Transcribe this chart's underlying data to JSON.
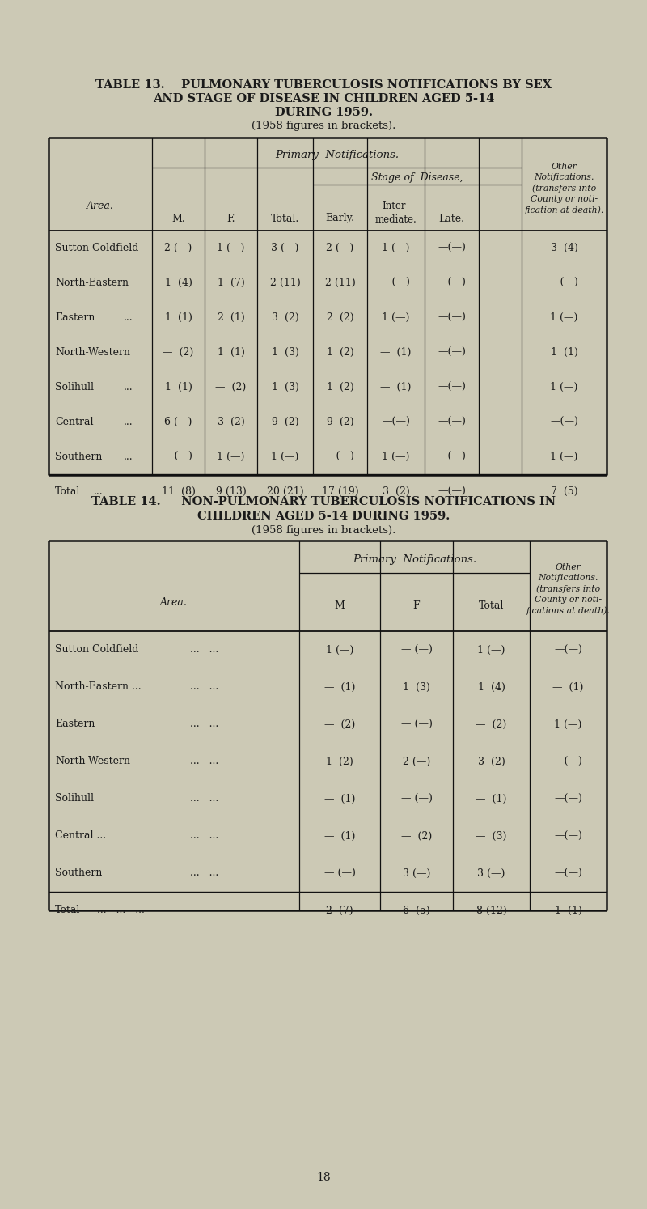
{
  "bg_color": "#ccc9b5",
  "text_color": "#1a1a1a",
  "table13_title_line1": "TABLE 13.    PULMONARY TUBERCULOSIS NOTIFICATIONS BY SEX",
  "table13_title_line2": "AND STAGE OF DISEASE IN CHILDREN AGED 5-14",
  "table13_title_line3": "DURING 1959.",
  "table13_subtitle": "(1958 figures in brackets).",
  "table14_title_line1": "TABLE 14.     NON-PULMONARY TUBERCULOSIS NOTIFICATIONS IN",
  "table14_title_line2": "CHILDREN AGED 5-14 DURING 1959.",
  "table14_subtitle": "(1958 figures in brackets).",
  "table13_rows": [
    [
      "Sutton Coldfield",
      "",
      "2 (—)",
      "1 (—)",
      "3 (—)",
      "2 (—)",
      "1 (—)",
      "—(—)",
      "3  (4)"
    ],
    [
      "North-Eastern",
      "",
      "1  (4)",
      "1  (7)",
      "2 (11)",
      "2 (11)",
      "—(—)",
      "—(—)",
      "—(—)"
    ],
    [
      "Eastern",
      "...",
      "1  (1)",
      "2  (1)",
      "3  (2)",
      "2  (2)",
      "1 (—)",
      "—(—)",
      "1 (—)"
    ],
    [
      "North-Western",
      "",
      "—  (2)",
      "1  (1)",
      "1  (3)",
      "1  (2)",
      "—  (1)",
      "—(—)",
      "1  (1)"
    ],
    [
      "Solihull",
      "...",
      "1  (1)",
      "—  (2)",
      "1  (3)",
      "1  (2)",
      "—  (1)",
      "—(—)",
      "1 (—)"
    ],
    [
      "Central",
      "...",
      "6 (—)",
      "3  (2)",
      "9  (2)",
      "9  (2)",
      "—(—)",
      "—(—)",
      "—(—)"
    ],
    [
      "Southern",
      "...",
      "—(—)",
      "1 (—)",
      "1 (—)",
      "—(—)",
      "1 (—)",
      "—(—)",
      "1 (—)"
    ],
    [
      "Total",
      "...",
      "11  (8)",
      "9 (13)",
      "20 (21)",
      "17 (19)",
      "3  (2)",
      "—(—)",
      "7  (5)"
    ]
  ],
  "table14_rows": [
    [
      "Sutton Coldfield",
      "1 (—)",
      "— (—)",
      "1 (—)",
      "—(—)"
    ],
    [
      "North-Eastern ...",
      "—  (1)",
      "1  (3)",
      "1  (4)",
      "—  (1)"
    ],
    [
      "Eastern",
      "—  (2)",
      "— (—)",
      "—  (2)",
      "1 (—)"
    ],
    [
      "North-Western",
      "1  (2)",
      "2 (—)",
      "3  (2)",
      "—(—)"
    ],
    [
      "Solihull",
      "—  (1)",
      "— (—)",
      "—  (1)",
      "—(—)"
    ],
    [
      "Central ...",
      "—  (1)",
      "—  (2)",
      "—  (3)",
      "—(—)"
    ],
    [
      "Southern",
      "— (—)",
      "3 (—)",
      "3 (—)",
      "—(—)"
    ],
    [
      "Total",
      "2  (7)",
      "6  (5)",
      "8 (12)",
      "1  (1)"
    ]
  ],
  "page_number": "18"
}
